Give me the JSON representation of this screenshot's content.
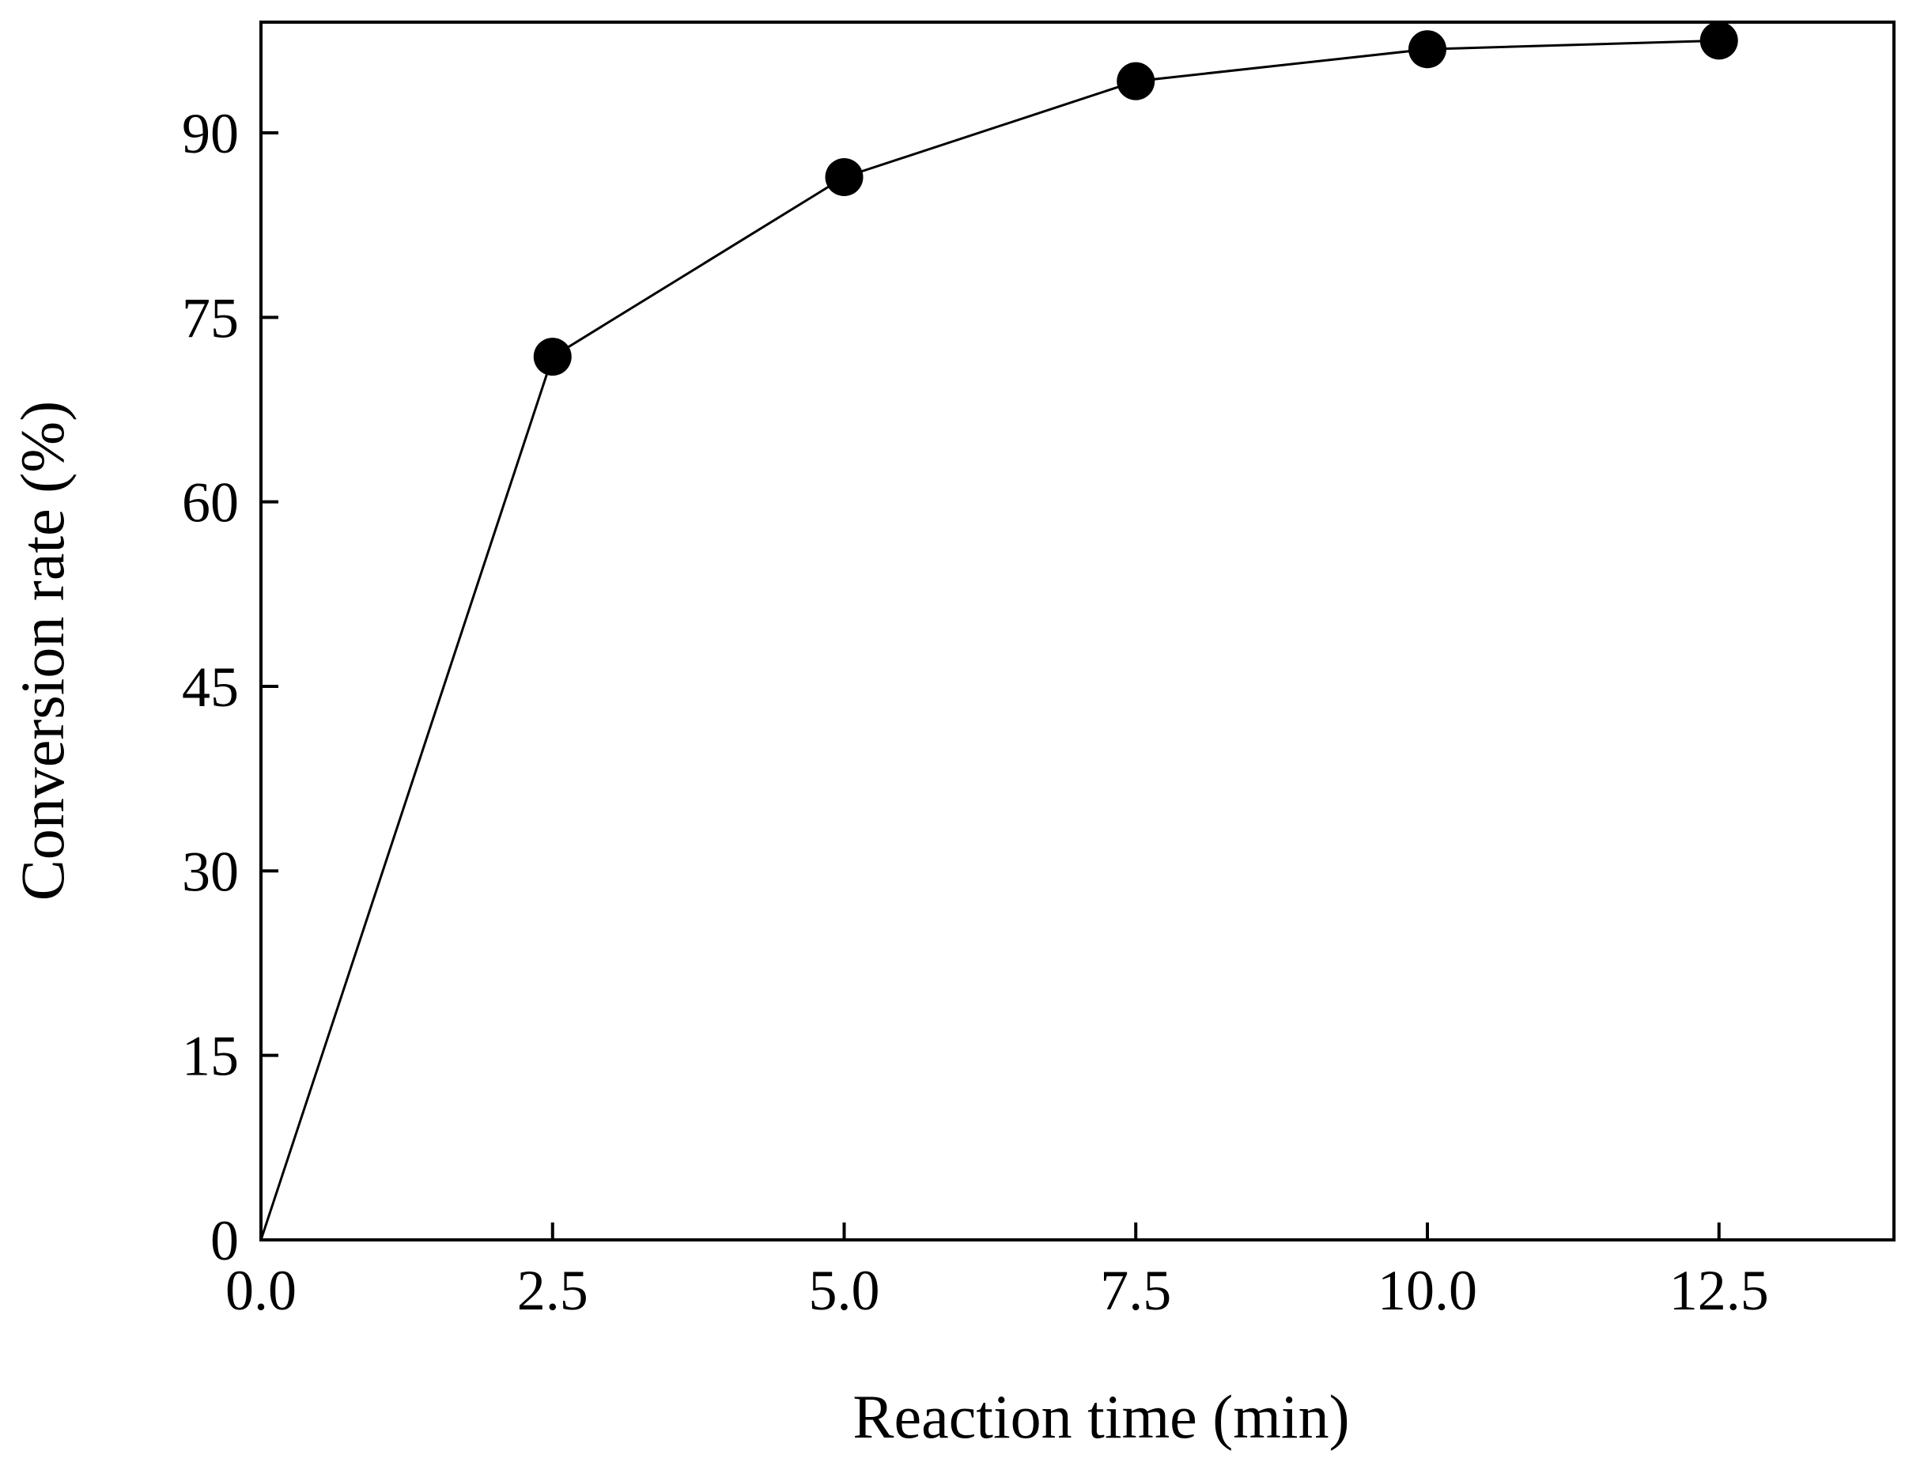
{
  "chart_data": {
    "type": "line",
    "title": "",
    "xlabel": "Reaction time (min)",
    "ylabel": "Conversion rate (%)",
    "xlim": [
      0,
      14
    ],
    "ylim": [
      0,
      99
    ],
    "xticks": [
      0.0,
      2.5,
      5.0,
      7.5,
      10.0,
      12.5
    ],
    "xtick_labels": [
      "0.0",
      "2.5",
      "5.0",
      "7.5",
      "10.0",
      "12.5"
    ],
    "yticks": [
      0,
      15,
      30,
      45,
      60,
      75,
      90
    ],
    "ytick_labels": [
      "0",
      "15",
      "30",
      "45",
      "60",
      "75",
      "90"
    ],
    "grid": false,
    "series": [
      {
        "name": "Conversion rate",
        "color": "#000000",
        "marker": "filled-circle",
        "x": [
          0.0,
          2.5,
          5.0,
          7.5,
          10.0,
          12.5
        ],
        "y": [
          0.0,
          71.8,
          86.4,
          94.2,
          96.8,
          97.5
        ],
        "marker_visible": [
          false,
          true,
          true,
          true,
          true,
          true
        ]
      }
    ]
  }
}
